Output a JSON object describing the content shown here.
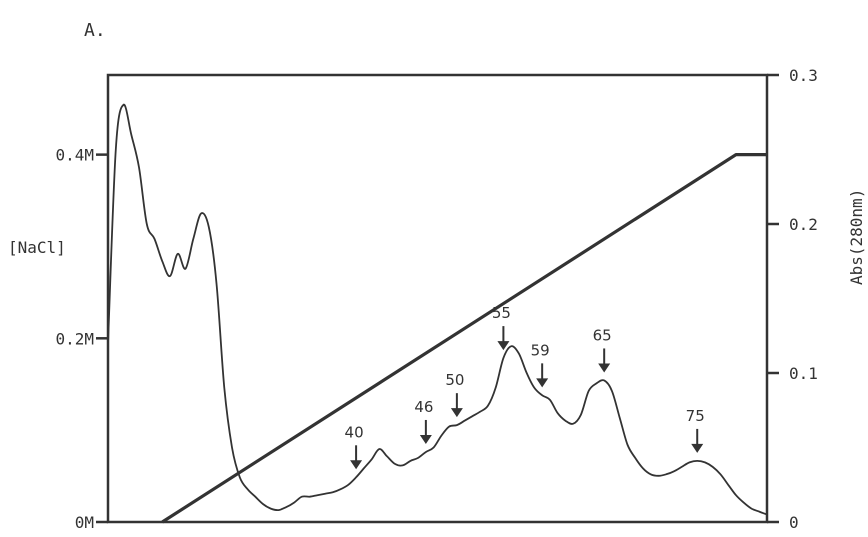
{
  "chart_data": {
    "type": "line",
    "panel_label": "A.",
    "x": [
      0,
      1,
      2,
      3,
      4,
      5,
      6,
      7,
      8,
      9,
      10,
      11,
      12,
      13,
      14,
      15,
      16,
      17,
      18,
      19,
      20,
      21,
      22,
      23,
      24,
      25,
      26,
      27,
      28,
      29,
      30,
      31,
      32,
      33,
      34,
      35,
      36,
      37,
      38,
      39,
      40,
      41,
      42,
      43,
      44,
      45,
      46,
      47,
      48,
      49,
      50,
      51,
      52,
      53,
      54,
      55,
      56,
      57,
      58,
      59,
      60,
      61,
      62,
      63,
      64,
      65,
      66,
      67,
      68,
      69,
      70,
      71,
      72,
      73,
      74,
      75,
      76,
      77,
      78,
      79,
      80,
      81,
      82,
      83,
      84,
      85
    ],
    "left_axis": {
      "label": "[NaCl]",
      "ticks": [
        {
          "value": 0,
          "label": "0M"
        },
        {
          "value": 0.2,
          "label": "0.2M"
        },
        {
          "value": 0.4,
          "label": "0.4M"
        }
      ],
      "range": [
        0,
        0.4867
      ]
    },
    "right_axis": {
      "label": "Abs(280nm)",
      "ticks": [
        {
          "value": 0,
          "label": "0"
        },
        {
          "value": 0.1,
          "label": "0.1"
        },
        {
          "value": 0.2,
          "label": "0.2"
        },
        {
          "value": 0.3,
          "label": "0.3"
        }
      ],
      "range": [
        0,
        0.3
      ]
    },
    "series": [
      {
        "axis": "right",
        "values": [
          0.12,
          0.25,
          0.28,
          0.26,
          0.238,
          0.2,
          0.19,
          0.175,
          0.165,
          0.18,
          0.17,
          0.19,
          0.207,
          0.198,
          0.16,
          0.09,
          0.05,
          0.03,
          0.022,
          0.017,
          0.012,
          0.009,
          0.008,
          0.01,
          0.013,
          0.017,
          0.017,
          0.018,
          0.019,
          0.02,
          0.022,
          0.025,
          0.03,
          0.036,
          0.042,
          0.049,
          0.044,
          0.039,
          0.038,
          0.041,
          0.043,
          0.047,
          0.05,
          0.058,
          0.064,
          0.065,
          0.068,
          0.071,
          0.074,
          0.078,
          0.09,
          0.11,
          0.118,
          0.113,
          0.1,
          0.09,
          0.085,
          0.082,
          0.073,
          0.068,
          0.066,
          0.072,
          0.088,
          0.093,
          0.095,
          0.088,
          0.07,
          0.052,
          0.043,
          0.036,
          0.032,
          0.031,
          0.032,
          0.034,
          0.037,
          0.04,
          0.041,
          0.04,
          0.037,
          0.032,
          0.025,
          0.018,
          0.013,
          0.009,
          0.007,
          0.005
        ]
      },
      {
        "axis": "left",
        "x": [
          7,
          81,
          85
        ],
        "values": [
          0,
          0.4,
          0.4
        ]
      }
    ],
    "annotations": [
      {
        "label": "40",
        "x": 32
      },
      {
        "label": "46",
        "x": 41
      },
      {
        "label": "50",
        "x": 45
      },
      {
        "label": "55",
        "x": 51
      },
      {
        "label": "59",
        "x": 56
      },
      {
        "label": "65",
        "x": 64
      },
      {
        "label": "75",
        "x": 76
      }
    ],
    "grid": false,
    "colors": {
      "line": "#333333",
      "frame": "#333333"
    }
  }
}
